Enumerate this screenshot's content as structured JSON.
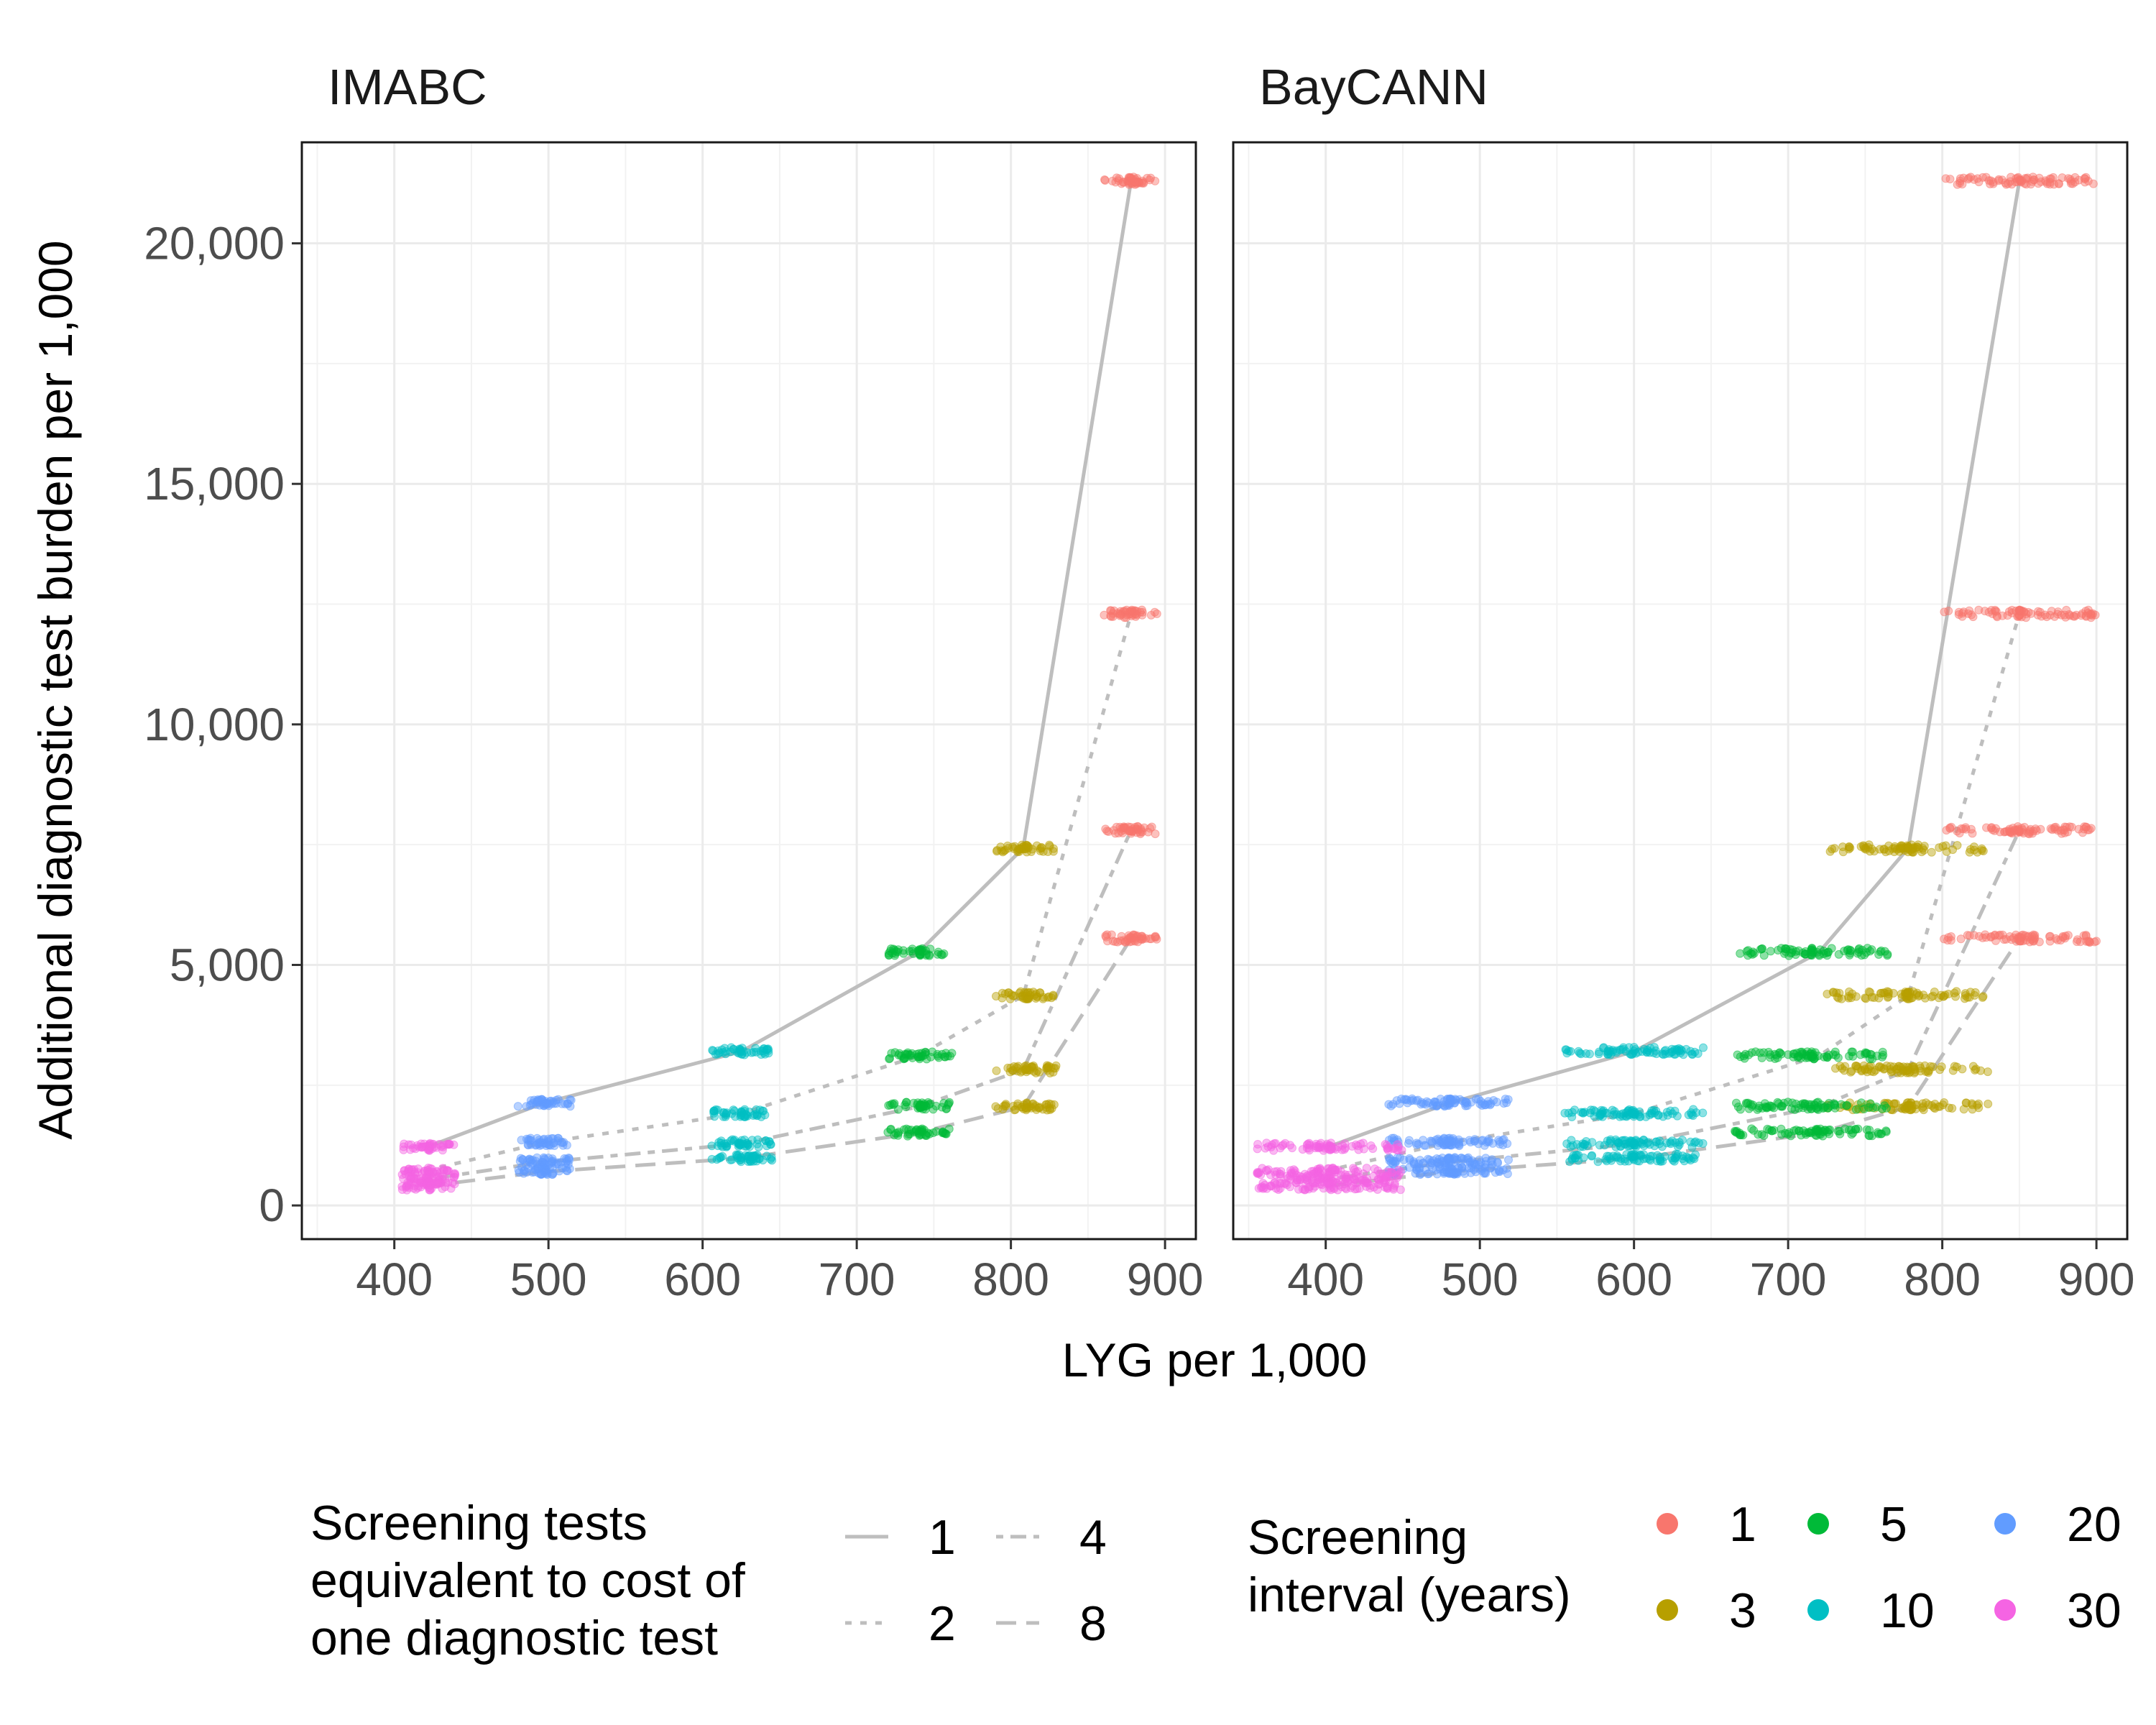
{
  "chart_data": {
    "type": "scatter",
    "xlabel": "LYG per 1,000",
    "ylabel": "Additional diagnostic test burden per 1,000",
    "xlim": [
      340,
      920
    ],
    "ylim": [
      -700,
      22100
    ],
    "x_ticks": [
      400,
      500,
      600,
      700,
      800,
      900
    ],
    "x_tick_labels": [
      "400",
      "500",
      "600",
      "700",
      "800",
      "900"
    ],
    "y_ticks": [
      0,
      5000,
      10000,
      15000,
      20000
    ],
    "y_tick_labels": [
      "0",
      "5,000",
      "10,000",
      "15,000",
      "20,000"
    ],
    "grid": true,
    "legend_position": "bottom",
    "panels": [
      {
        "title": "IMABC",
        "clusters": [
          {
            "interval": "1",
            "y": 21300,
            "x_range": [
              860,
              895
            ]
          },
          {
            "interval": "1",
            "y": 12300,
            "x_range": [
              860,
              895
            ]
          },
          {
            "interval": "1",
            "y": 7800,
            "x_range": [
              860,
              895
            ]
          },
          {
            "interval": "1",
            "y": 5550,
            "x_range": [
              860,
              895
            ]
          },
          {
            "interval": "3",
            "y": 7420,
            "x_range": [
              790,
              830
            ]
          },
          {
            "interval": "3",
            "y": 4370,
            "x_range": [
              790,
              830
            ]
          },
          {
            "interval": "3",
            "y": 2830,
            "x_range": [
              790,
              830
            ]
          },
          {
            "interval": "3",
            "y": 2060,
            "x_range": [
              790,
              830
            ]
          },
          {
            "interval": "5",
            "y": 5270,
            "x_range": [
              720,
              762
            ]
          },
          {
            "interval": "5",
            "y": 3120,
            "x_range": [
              720,
              762
            ]
          },
          {
            "interval": "5",
            "y": 2070,
            "x_range": [
              720,
              762
            ]
          },
          {
            "interval": "5",
            "y": 1520,
            "x_range": [
              720,
              762
            ]
          },
          {
            "interval": "10",
            "y": 3210,
            "x_range": [
              605,
              645
            ]
          },
          {
            "interval": "10",
            "y": 1920,
            "x_range": [
              605,
              645
            ]
          },
          {
            "interval": "10",
            "y": 1290,
            "x_range": [
              605,
              645
            ]
          },
          {
            "interval": "10",
            "y": 990,
            "x_range": [
              605,
              645
            ]
          },
          {
            "interval": "20",
            "y": 2140,
            "x_range": [
              480,
              515
            ]
          },
          {
            "interval": "20",
            "y": 1320,
            "x_range": [
              480,
              515
            ]
          },
          {
            "interval": "20",
            "y": 920,
            "x_range": [
              480,
              515
            ]
          },
          {
            "interval": "20",
            "y": 720,
            "x_range": [
              480,
              515
            ]
          },
          {
            "interval": "30",
            "y": 1220,
            "x_range": [
              405,
              440
            ]
          },
          {
            "interval": "30",
            "y": 700,
            "x_range": [
              405,
              440
            ]
          },
          {
            "interval": "30",
            "y": 540,
            "x_range": [
              405,
              440
            ]
          },
          {
            "interval": "30",
            "y": 400,
            "x_range": [
              405,
              440
            ]
          }
        ],
        "frontiers": [
          {
            "ratio": "1",
            "points": [
              [
                420,
                1200
              ],
              [
                497,
                2130
              ],
              [
                625,
                3200
              ],
              [
                740,
                5260
              ],
              [
                808,
                7430
              ],
              [
                878,
                21300
              ]
            ]
          },
          {
            "ratio": "2",
            "points": [
              [
                420,
                720
              ],
              [
                497,
                1310
              ],
              [
                625,
                1910
              ],
              [
                740,
                3110
              ],
              [
                808,
                4360
              ],
              [
                878,
                12300
              ]
            ]
          },
          {
            "ratio": "4",
            "points": [
              [
                420,
                540
              ],
              [
                497,
                900
              ],
              [
                625,
                1280
              ],
              [
                740,
                2050
              ],
              [
                808,
                2820
              ],
              [
                878,
                7800
              ]
            ]
          },
          {
            "ratio": "8",
            "points": [
              [
                420,
                400
              ],
              [
                497,
                700
              ],
              [
                625,
                980
              ],
              [
                740,
                1510
              ],
              [
                808,
                2050
              ],
              [
                878,
                5550
              ]
            ]
          }
        ]
      },
      {
        "title": "BayCANN",
        "clusters": [
          {
            "interval": "1",
            "y": 21300,
            "x_range": [
              800,
              900
            ]
          },
          {
            "interval": "1",
            "y": 12300,
            "x_range": [
              800,
              900
            ]
          },
          {
            "interval": "1",
            "y": 7800,
            "x_range": [
              800,
              900
            ]
          },
          {
            "interval": "1",
            "y": 5550,
            "x_range": [
              800,
              900
            ]
          },
          {
            "interval": "3",
            "y": 7420,
            "x_range": [
              725,
              830
            ]
          },
          {
            "interval": "3",
            "y": 4370,
            "x_range": [
              725,
              830
            ]
          },
          {
            "interval": "3",
            "y": 2830,
            "x_range": [
              725,
              830
            ]
          },
          {
            "interval": "3",
            "y": 2060,
            "x_range": [
              725,
              830
            ]
          },
          {
            "interval": "5",
            "y": 5270,
            "x_range": [
              665,
              765
            ]
          },
          {
            "interval": "5",
            "y": 3120,
            "x_range": [
              665,
              765
            ]
          },
          {
            "interval": "5",
            "y": 2070,
            "x_range": [
              665,
              765
            ]
          },
          {
            "interval": "5",
            "y": 1520,
            "x_range": [
              665,
              765
            ]
          },
          {
            "interval": "10",
            "y": 3210,
            "x_range": [
              555,
              645
            ]
          },
          {
            "interval": "10",
            "y": 1920,
            "x_range": [
              555,
              645
            ]
          },
          {
            "interval": "10",
            "y": 1290,
            "x_range": [
              555,
              645
            ]
          },
          {
            "interval": "10",
            "y": 990,
            "x_range": [
              555,
              645
            ]
          },
          {
            "interval": "20",
            "y": 2140,
            "x_range": [
              440,
              520
            ]
          },
          {
            "interval": "20",
            "y": 1320,
            "x_range": [
              440,
              520
            ]
          },
          {
            "interval": "20",
            "y": 920,
            "x_range": [
              440,
              520
            ]
          },
          {
            "interval": "20",
            "y": 720,
            "x_range": [
              440,
              520
            ]
          },
          {
            "interval": "30",
            "y": 1220,
            "x_range": [
              355,
              450
            ]
          },
          {
            "interval": "30",
            "y": 700,
            "x_range": [
              355,
              450
            ]
          },
          {
            "interval": "30",
            "y": 540,
            "x_range": [
              355,
              450
            ]
          },
          {
            "interval": "30",
            "y": 400,
            "x_range": [
              355,
              450
            ]
          }
        ],
        "frontiers": [
          {
            "ratio": "1",
            "points": [
              [
                400,
                1200
              ],
              [
                480,
                2130
              ],
              [
                600,
                3200
              ],
              [
                720,
                5260
              ],
              [
                778,
                7430
              ],
              [
                850,
                21300
              ]
            ]
          },
          {
            "ratio": "2",
            "points": [
              [
                400,
                720
              ],
              [
                480,
                1310
              ],
              [
                600,
                1910
              ],
              [
                720,
                3110
              ],
              [
                778,
                4360
              ],
              [
                850,
                12300
              ]
            ]
          },
          {
            "ratio": "4",
            "points": [
              [
                400,
                540
              ],
              [
                480,
                900
              ],
              [
                600,
                1280
              ],
              [
                720,
                2050
              ],
              [
                778,
                2820
              ],
              [
                850,
                7800
              ]
            ]
          },
          {
            "ratio": "8",
            "points": [
              [
                400,
                400
              ],
              [
                480,
                700
              ],
              [
                600,
                980
              ],
              [
                720,
                1510
              ],
              [
                778,
                2050
              ],
              [
                850,
                5550
              ]
            ]
          }
        ]
      }
    ],
    "legend_linetype": {
      "title": "Screening tests equivalent to cost of one diagnostic test",
      "title_lines": [
        "Screening tests",
        "equivalent to cost of",
        "one diagnostic test"
      ],
      "entries": [
        {
          "label": "1",
          "style": "solid"
        },
        {
          "label": "2",
          "style": "dotted"
        },
        {
          "label": "4",
          "style": "dotdash"
        },
        {
          "label": "8",
          "style": "longdash"
        }
      ],
      "line_color": "#bebebe"
    },
    "legend_color": {
      "title": "Screening interval (years)",
      "title_lines": [
        "Screening",
        "interval (years)"
      ],
      "entries": [
        {
          "label": "1",
          "color": "#F8766D"
        },
        {
          "label": "3",
          "color": "#B79F00"
        },
        {
          "label": "5",
          "color": "#00BA38"
        },
        {
          "label": "10",
          "color": "#00BFC4"
        },
        {
          "label": "20",
          "color": "#619CFF"
        },
        {
          "label": "30",
          "color": "#F564E3"
        }
      ]
    }
  }
}
